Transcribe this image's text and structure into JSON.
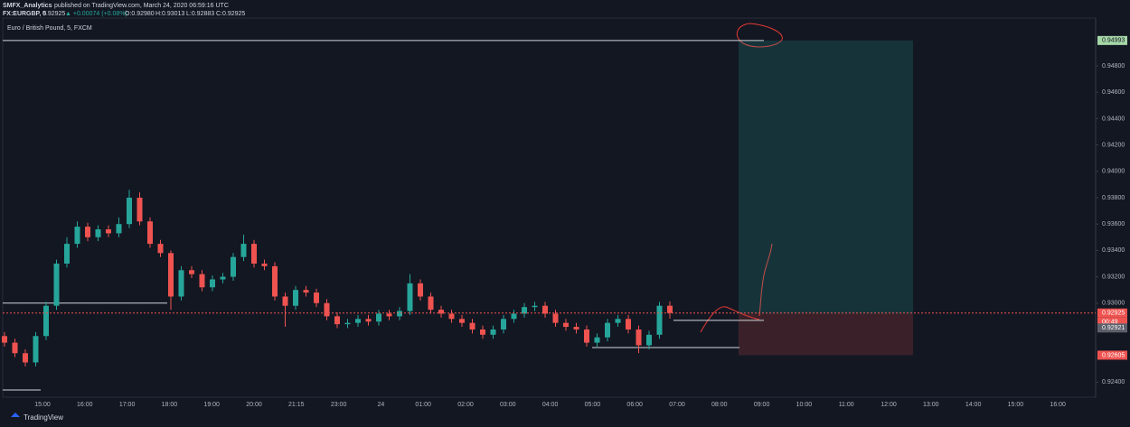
{
  "header": {
    "author": "SMFX_Analytics",
    "published": "published on TradingView.com, March 24, 2020 06:59:16 UTC",
    "symbol": "FX:EURGBP, 5",
    "last": "0.92925",
    "change": "▲ +0.00074 (+0.08%)",
    "open": "O:0.92980",
    "high": "H:0.93013",
    "low": "L:0.92883",
    "close": "C:0.92925"
  },
  "chart_data": {
    "type": "candlestick",
    "title": "Euro / British Pound, 5, FXCM",
    "categories": [
      "15:00",
      "16:00",
      "17:00",
      "18:00",
      "19:00",
      "20:00",
      "21:15",
      "23:00",
      "24",
      "01:00",
      "02:00",
      "03:00",
      "04:00",
      "05:00",
      "06:00",
      "07:00",
      "08:00",
      "09:00",
      "10:00",
      "11:00",
      "12:00",
      "13:00",
      "14:00",
      "15:00",
      "16:00"
    ],
    "open": [
      0.9275,
      0.927,
      0.9262,
      0.9255,
      0.9275,
      0.9298,
      0.933,
      0.9345,
      0.9358,
      0.935,
      0.9356,
      0.9353,
      0.936,
      0.938,
      0.9362,
      0.9345,
      0.9338,
      0.9305,
      0.9325,
      0.9322,
      0.9312,
      0.9318,
      0.932,
      0.9335,
      0.9345,
      0.933,
      0.9328,
      0.9305,
      0.9298,
      0.931,
      0.9308,
      0.93,
      0.929,
      0.9284,
      0.9285,
      0.9288,
      0.9286,
      0.9292,
      0.929,
      0.9294,
      0.9315,
      0.9305,
      0.9295,
      0.9292,
      0.9288,
      0.9285,
      0.928,
      0.9276,
      0.928,
      0.9288,
      0.9292,
      0.9297,
      0.9298,
      0.9292,
      0.9285,
      0.9282,
      0.928,
      0.927,
      0.9274,
      0.9285,
      0.9288,
      0.928,
      0.9268,
      0.9276,
      0.9298
    ],
    "high": [
      0.9278,
      0.9273,
      0.9265,
      0.9278,
      0.9301,
      0.9333,
      0.935,
      0.9362,
      0.9361,
      0.9359,
      0.9359,
      0.9365,
      0.9386,
      0.9384,
      0.9365,
      0.9348,
      0.934,
      0.9328,
      0.9328,
      0.9325,
      0.9321,
      0.9323,
      0.9338,
      0.9352,
      0.9348,
      0.9333,
      0.9331,
      0.9308,
      0.9313,
      0.9313,
      0.9311,
      0.9303,
      0.9293,
      0.9288,
      0.9291,
      0.9291,
      0.9295,
      0.9295,
      0.9297,
      0.9322,
      0.9318,
      0.9308,
      0.9298,
      0.9295,
      0.9291,
      0.9288,
      0.9283,
      0.9283,
      0.9291,
      0.9295,
      0.93,
      0.9301,
      0.9301,
      0.9295,
      0.9288,
      0.9285,
      0.9283,
      0.9277,
      0.9288,
      0.9291,
      0.9291,
      0.9283,
      0.9279,
      0.9301,
      0.93013
    ],
    "low": [
      0.9267,
      0.9259,
      0.9252,
      0.9252,
      0.9272,
      0.9295,
      0.9327,
      0.9342,
      0.9347,
      0.9347,
      0.935,
      0.935,
      0.9357,
      0.9359,
      0.9342,
      0.9335,
      0.9295,
      0.9302,
      0.9319,
      0.9309,
      0.9309,
      0.9315,
      0.9317,
      0.9332,
      0.9327,
      0.9325,
      0.9302,
      0.9282,
      0.9295,
      0.9305,
      0.9297,
      0.9287,
      0.9281,
      0.9281,
      0.9282,
      0.9283,
      0.9283,
      0.9287,
      0.9287,
      0.9291,
      0.9302,
      0.9292,
      0.9289,
      0.9285,
      0.9282,
      0.9277,
      0.9273,
      0.9273,
      0.9277,
      0.9285,
      0.9289,
      0.9294,
      0.9289,
      0.9282,
      0.9279,
      0.9277,
      0.9267,
      0.9267,
      0.9271,
      0.9282,
      0.9277,
      0.9262,
      0.9265,
      0.9273,
      0.92883
    ],
    "close": [
      0.927,
      0.9262,
      0.9255,
      0.9275,
      0.9298,
      0.933,
      0.9345,
      0.9358,
      0.935,
      0.9356,
      0.9353,
      0.936,
      0.938,
      0.9362,
      0.9345,
      0.9338,
      0.9305,
      0.9325,
      0.9322,
      0.9312,
      0.9318,
      0.932,
      0.9335,
      0.9345,
      0.933,
      0.9328,
      0.9305,
      0.9298,
      0.931,
      0.9308,
      0.93,
      0.929,
      0.9284,
      0.9285,
      0.9288,
      0.9286,
      0.9292,
      0.929,
      0.9294,
      0.9315,
      0.9305,
      0.9295,
      0.9292,
      0.9288,
      0.9285,
      0.928,
      0.9276,
      0.928,
      0.9288,
      0.9292,
      0.9297,
      0.9298,
      0.9292,
      0.9285,
      0.9282,
      0.928,
      0.927,
      0.9274,
      0.9285,
      0.9288,
      0.928,
      0.9268,
      0.9276,
      0.9298,
      0.92925
    ],
    "up_color": "#26a69a",
    "down_color": "#ef5350",
    "ylim": [
      0.92286,
      0.95177
    ],
    "yticks": [
      {
        "value": 0.948,
        "label": "0.94800"
      },
      {
        "value": 0.946,
        "label": "0.94600"
      },
      {
        "value": 0.944,
        "label": "0.94400"
      },
      {
        "value": 0.942,
        "label": "0.94200"
      },
      {
        "value": 0.94,
        "label": "0.94000"
      },
      {
        "value": 0.938,
        "label": "0.93800"
      },
      {
        "value": 0.936,
        "label": "0.93600"
      },
      {
        "value": 0.934,
        "label": "0.93400"
      },
      {
        "value": 0.932,
        "label": "0.93200"
      },
      {
        "value": 0.93,
        "label": "0.93000"
      },
      {
        "value": 0.924,
        "label": "0.92400"
      }
    ],
    "position": {
      "target": 0.94993,
      "entry": 0.92921,
      "stop": 0.92605
    },
    "countdown": "00:49",
    "levels": [
      0.93,
      0.92341,
      0.92869,
      0.92663
    ]
  },
  "footer": {
    "brand": "TradingView"
  }
}
